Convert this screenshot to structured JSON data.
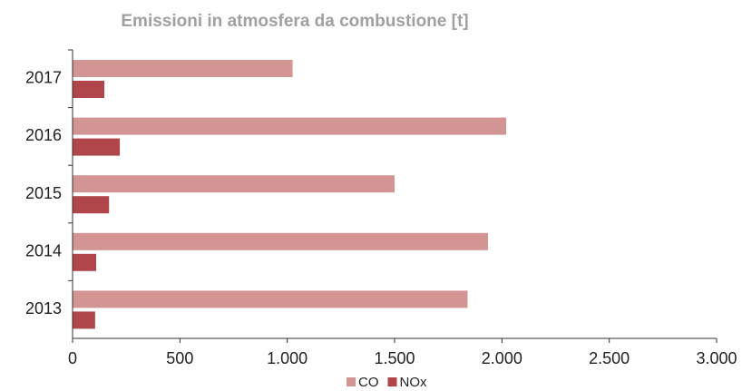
{
  "chart_data": {
    "type": "hbar",
    "title": "Emissioni in atmosfera da combustione [t]",
    "categories": [
      "2013",
      "2014",
      "2015",
      "2016",
      "2017"
    ],
    "series": [
      {
        "name": "CO",
        "color": "#d39494",
        "values": [
          1840,
          1935,
          1500,
          2020,
          1025
        ]
      },
      {
        "name": "NOx",
        "color": "#b0464a",
        "values": [
          105,
          110,
          170,
          220,
          148
        ]
      }
    ],
    "xlim": [
      0,
      3000
    ],
    "xticks": [
      0,
      500,
      {
        "value": 1000,
        "label": "1.000"
      },
      {
        "value": 1500,
        "label": "1.500"
      },
      {
        "value": 2000,
        "label": "2.000"
      },
      {
        "value": 2500,
        "label": "2.500"
      },
      {
        "value": 3000,
        "label": "3.000"
      }
    ],
    "legend": "bottom"
  }
}
